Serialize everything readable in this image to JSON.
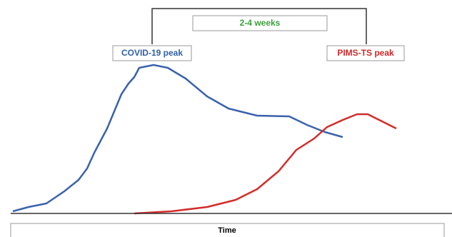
{
  "interval": {
    "label": "2-4 weeks"
  },
  "peaks": [
    {
      "label": "COVID-19 peak"
    },
    {
      "label": "PIMS-TS peak"
    }
  ],
  "axis": {
    "label": "Time"
  }
}
